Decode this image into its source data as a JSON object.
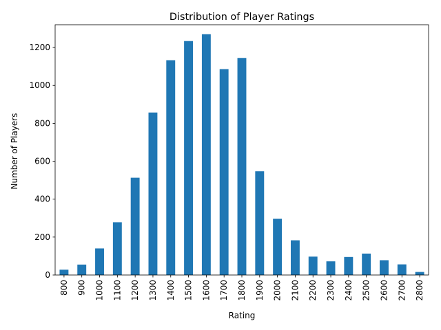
{
  "chart_data": {
    "type": "bar",
    "title": "Distribution of Player Ratings",
    "xlabel": "Rating",
    "ylabel": "Number of Players",
    "categories": [
      "800",
      "900",
      "1000",
      "1100",
      "1200",
      "1300",
      "1400",
      "1500",
      "1600",
      "1700",
      "1800",
      "1900",
      "2000",
      "2100",
      "2200",
      "2300",
      "2400",
      "2500",
      "2600",
      "2700",
      "2800"
    ],
    "values": [
      28,
      55,
      140,
      278,
      513,
      857,
      1133,
      1234,
      1270,
      1086,
      1145,
      547,
      297,
      183,
      97,
      72,
      95,
      113,
      78,
      56,
      16
    ],
    "ylim": [
      0,
      1320
    ],
    "yticks": [
      0,
      200,
      400,
      600,
      800,
      1000,
      1200
    ],
    "bar_color": "#1f77b4",
    "grid": false,
    "legend": "none"
  }
}
